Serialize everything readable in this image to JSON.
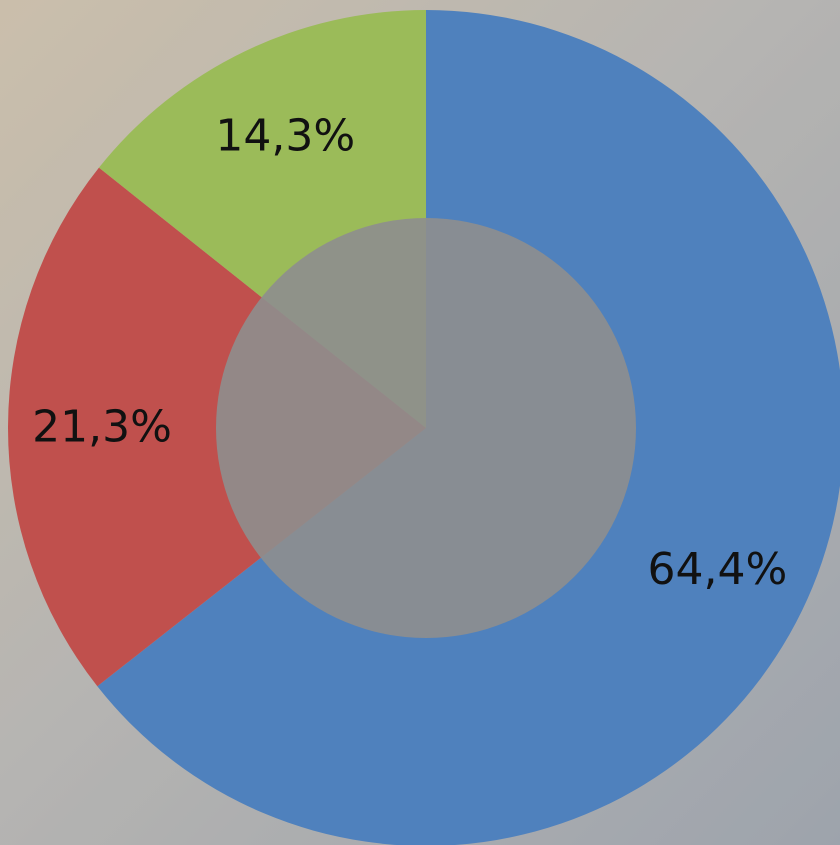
{
  "chart_data": {
    "type": "pie",
    "variant": "donut",
    "start_angle_deg": 0,
    "direction": "clockwise",
    "slices": [
      {
        "label": "64,4%",
        "value": 64.4,
        "color": "#4F81BD"
      },
      {
        "label": "21,3%",
        "value": 21.3,
        "color": "#C0504D"
      },
      {
        "label": "14,3%",
        "value": 14.3,
        "color": "#9BBB59"
      }
    ],
    "legend": "none",
    "background": "photo of students at a table (blurred)"
  },
  "colors": {
    "blue": "#4F81BD",
    "red": "#C0504D",
    "green": "#9BBB59",
    "hole": "#8E8E8E"
  }
}
